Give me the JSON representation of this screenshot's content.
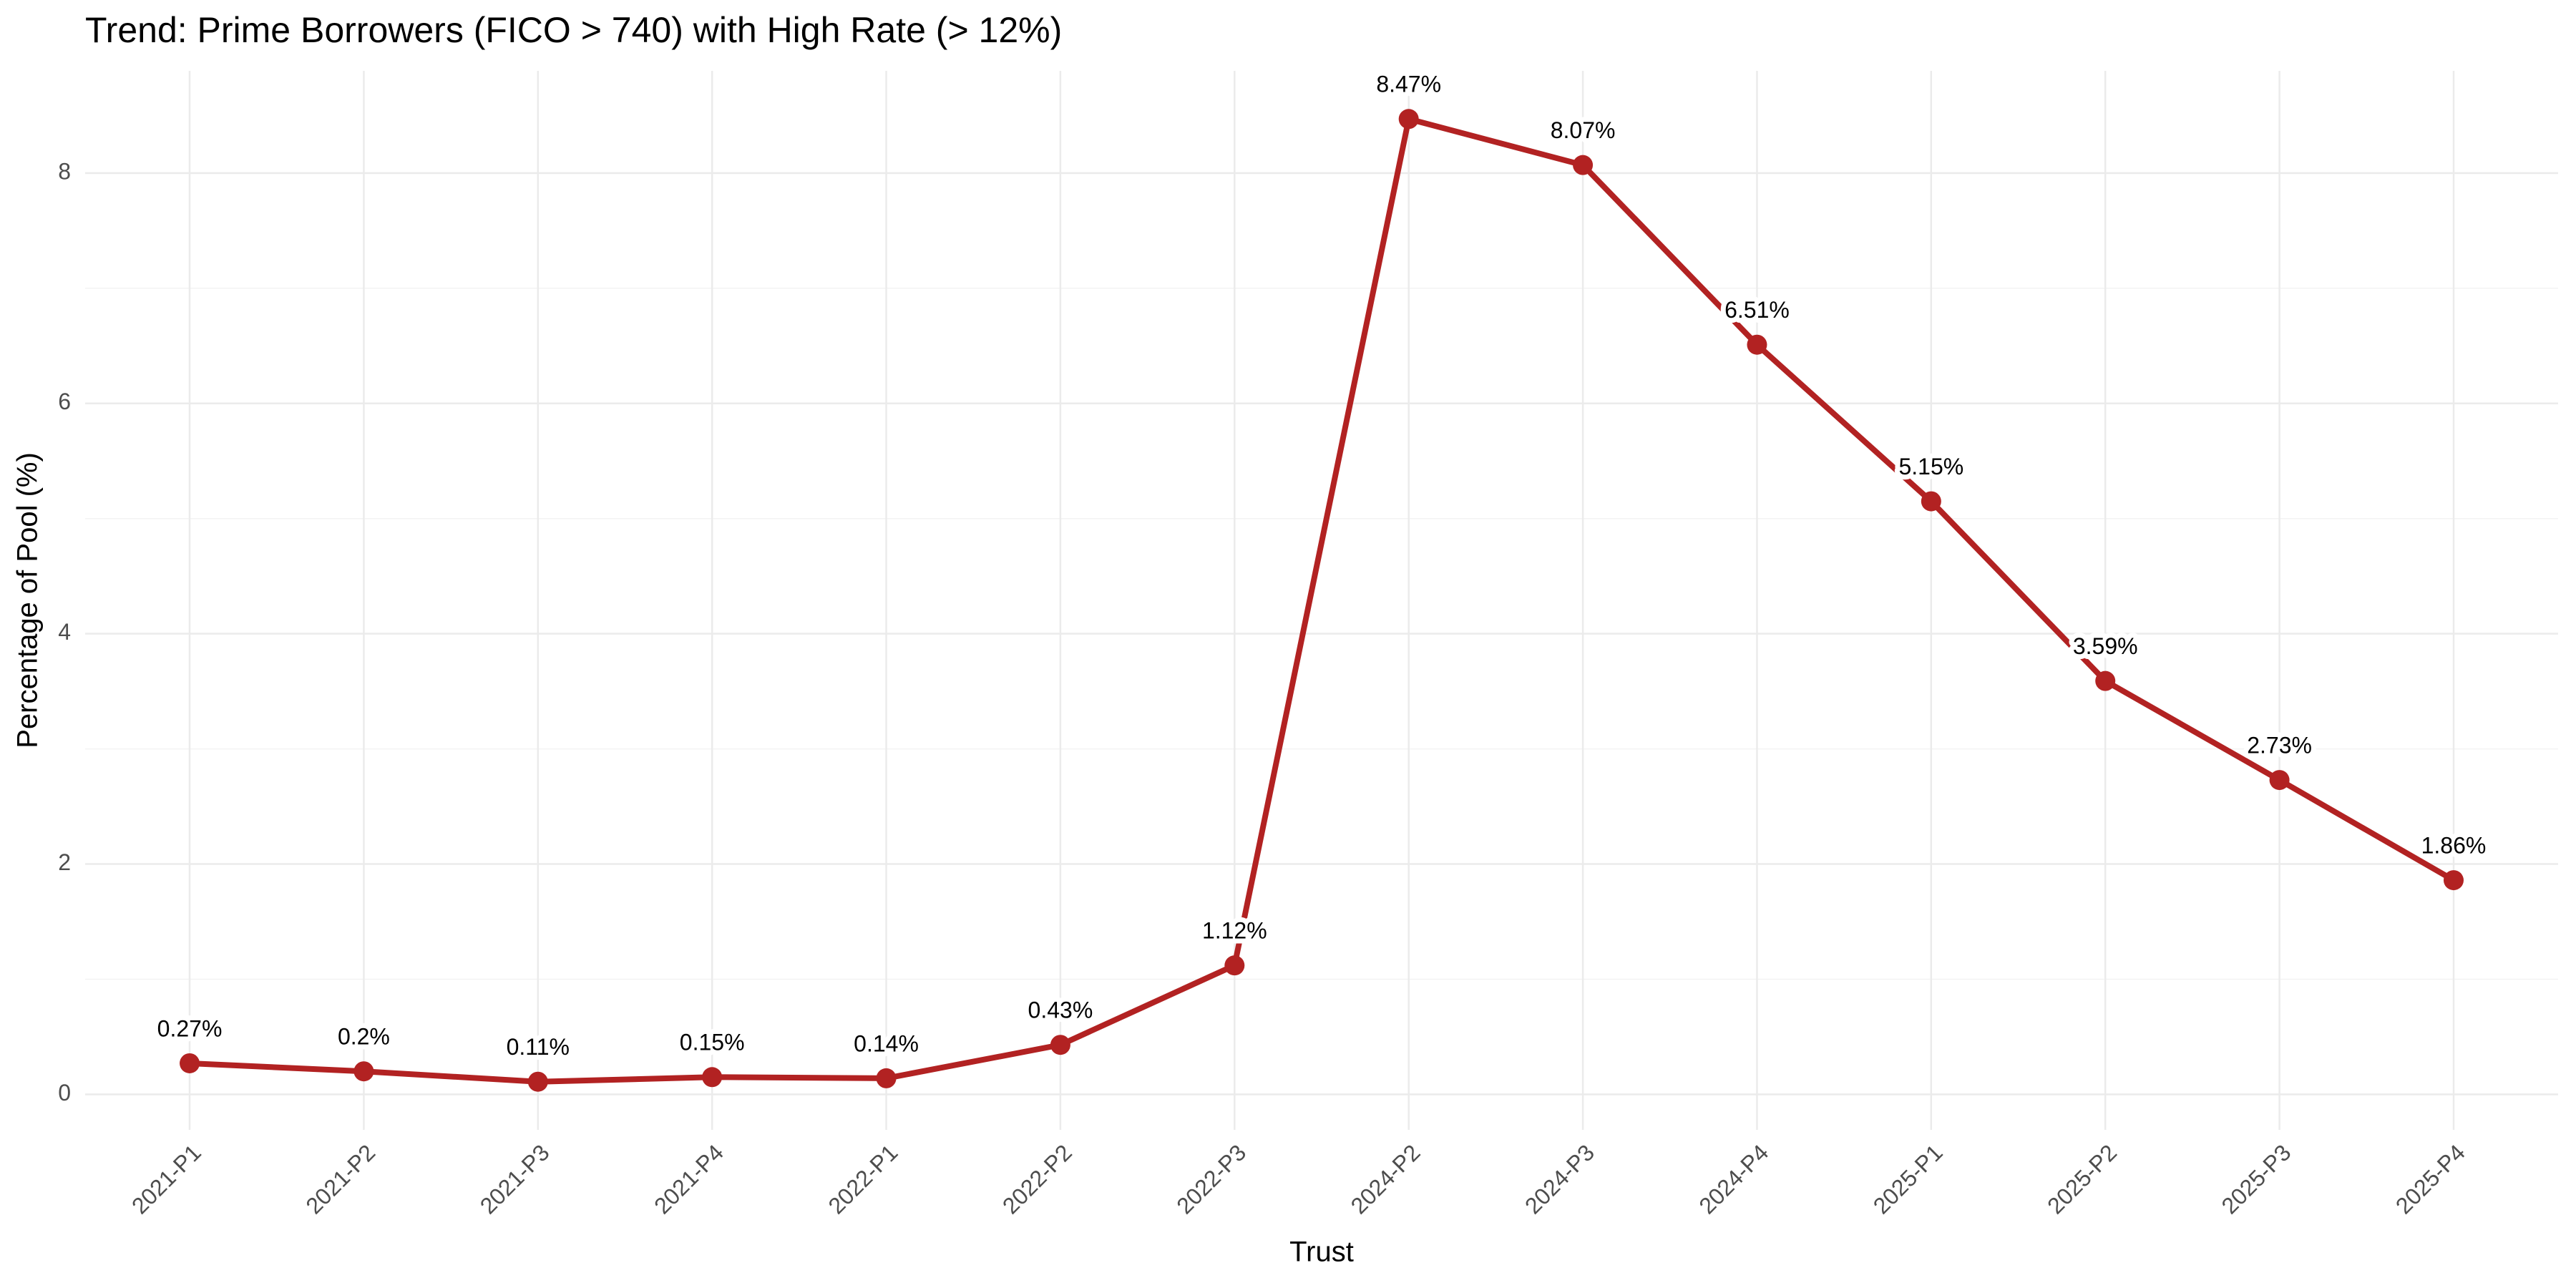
{
  "chart_data": {
    "type": "line",
    "title": "Trend: Prime Borrowers (FICO > 740) with High Rate (> 12%)",
    "x_label": "Trust",
    "y_label": "Percentage of Pool (%)",
    "categories": [
      "2021-P1",
      "2021-P2",
      "2021-P3",
      "2021-P4",
      "2022-P1",
      "2022-P2",
      "2022-P3",
      "2024-P2",
      "2024-P3",
      "2024-P4",
      "2025-P1",
      "2025-P2",
      "2025-P3",
      "2025-P4"
    ],
    "values": [
      0.27,
      0.2,
      0.11,
      0.15,
      0.14,
      0.43,
      1.12,
      8.47,
      8.07,
      6.51,
      5.15,
      3.59,
      2.73,
      1.86
    ],
    "value_labels": [
      "0.27%",
      "0.2%",
      "0.11%",
      "0.15%",
      "0.14%",
      "0.43%",
      "1.12%",
      "8.47%",
      "8.07%",
      "6.51%",
      "5.15%",
      "3.59%",
      "2.73%",
      "1.86%"
    ],
    "color": "#b22222",
    "ylim": [
      -0.308,
      8.888
    ],
    "yticks": [
      0,
      2,
      4,
      6,
      8
    ],
    "grid": true
  }
}
